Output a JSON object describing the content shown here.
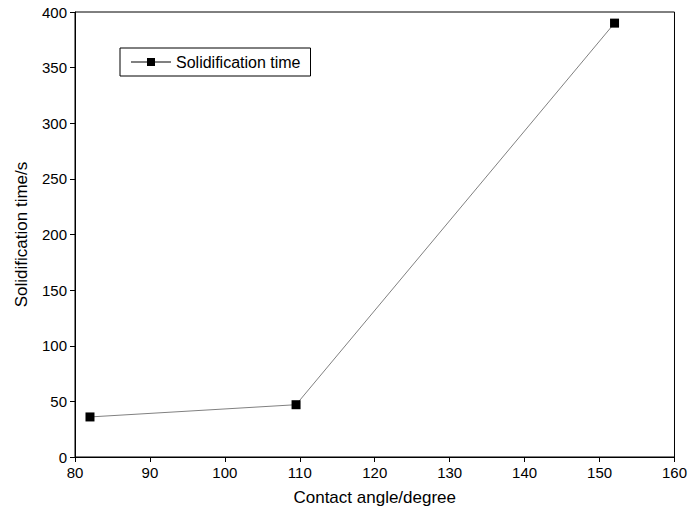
{
  "chart_data": {
    "type": "line",
    "x_label": "Contact angle/degree",
    "y_label": "Solidification time/s",
    "x": [
      82,
      109.5,
      152
    ],
    "series": [
      {
        "name": "Solidification time",
        "color": "#000000",
        "marker": "square",
        "line_style": "solid",
        "values": [
          36,
          47,
          390
        ]
      }
    ],
    "xlim": [
      80,
      160
    ],
    "xticks": [
      80,
      90,
      100,
      110,
      120,
      130,
      140,
      150,
      160
    ],
    "ylim": [
      0,
      400
    ],
    "yticks": [
      0,
      50,
      100,
      150,
      200,
      250,
      300,
      350,
      400
    ],
    "grid": false,
    "legend": "upper left"
  }
}
